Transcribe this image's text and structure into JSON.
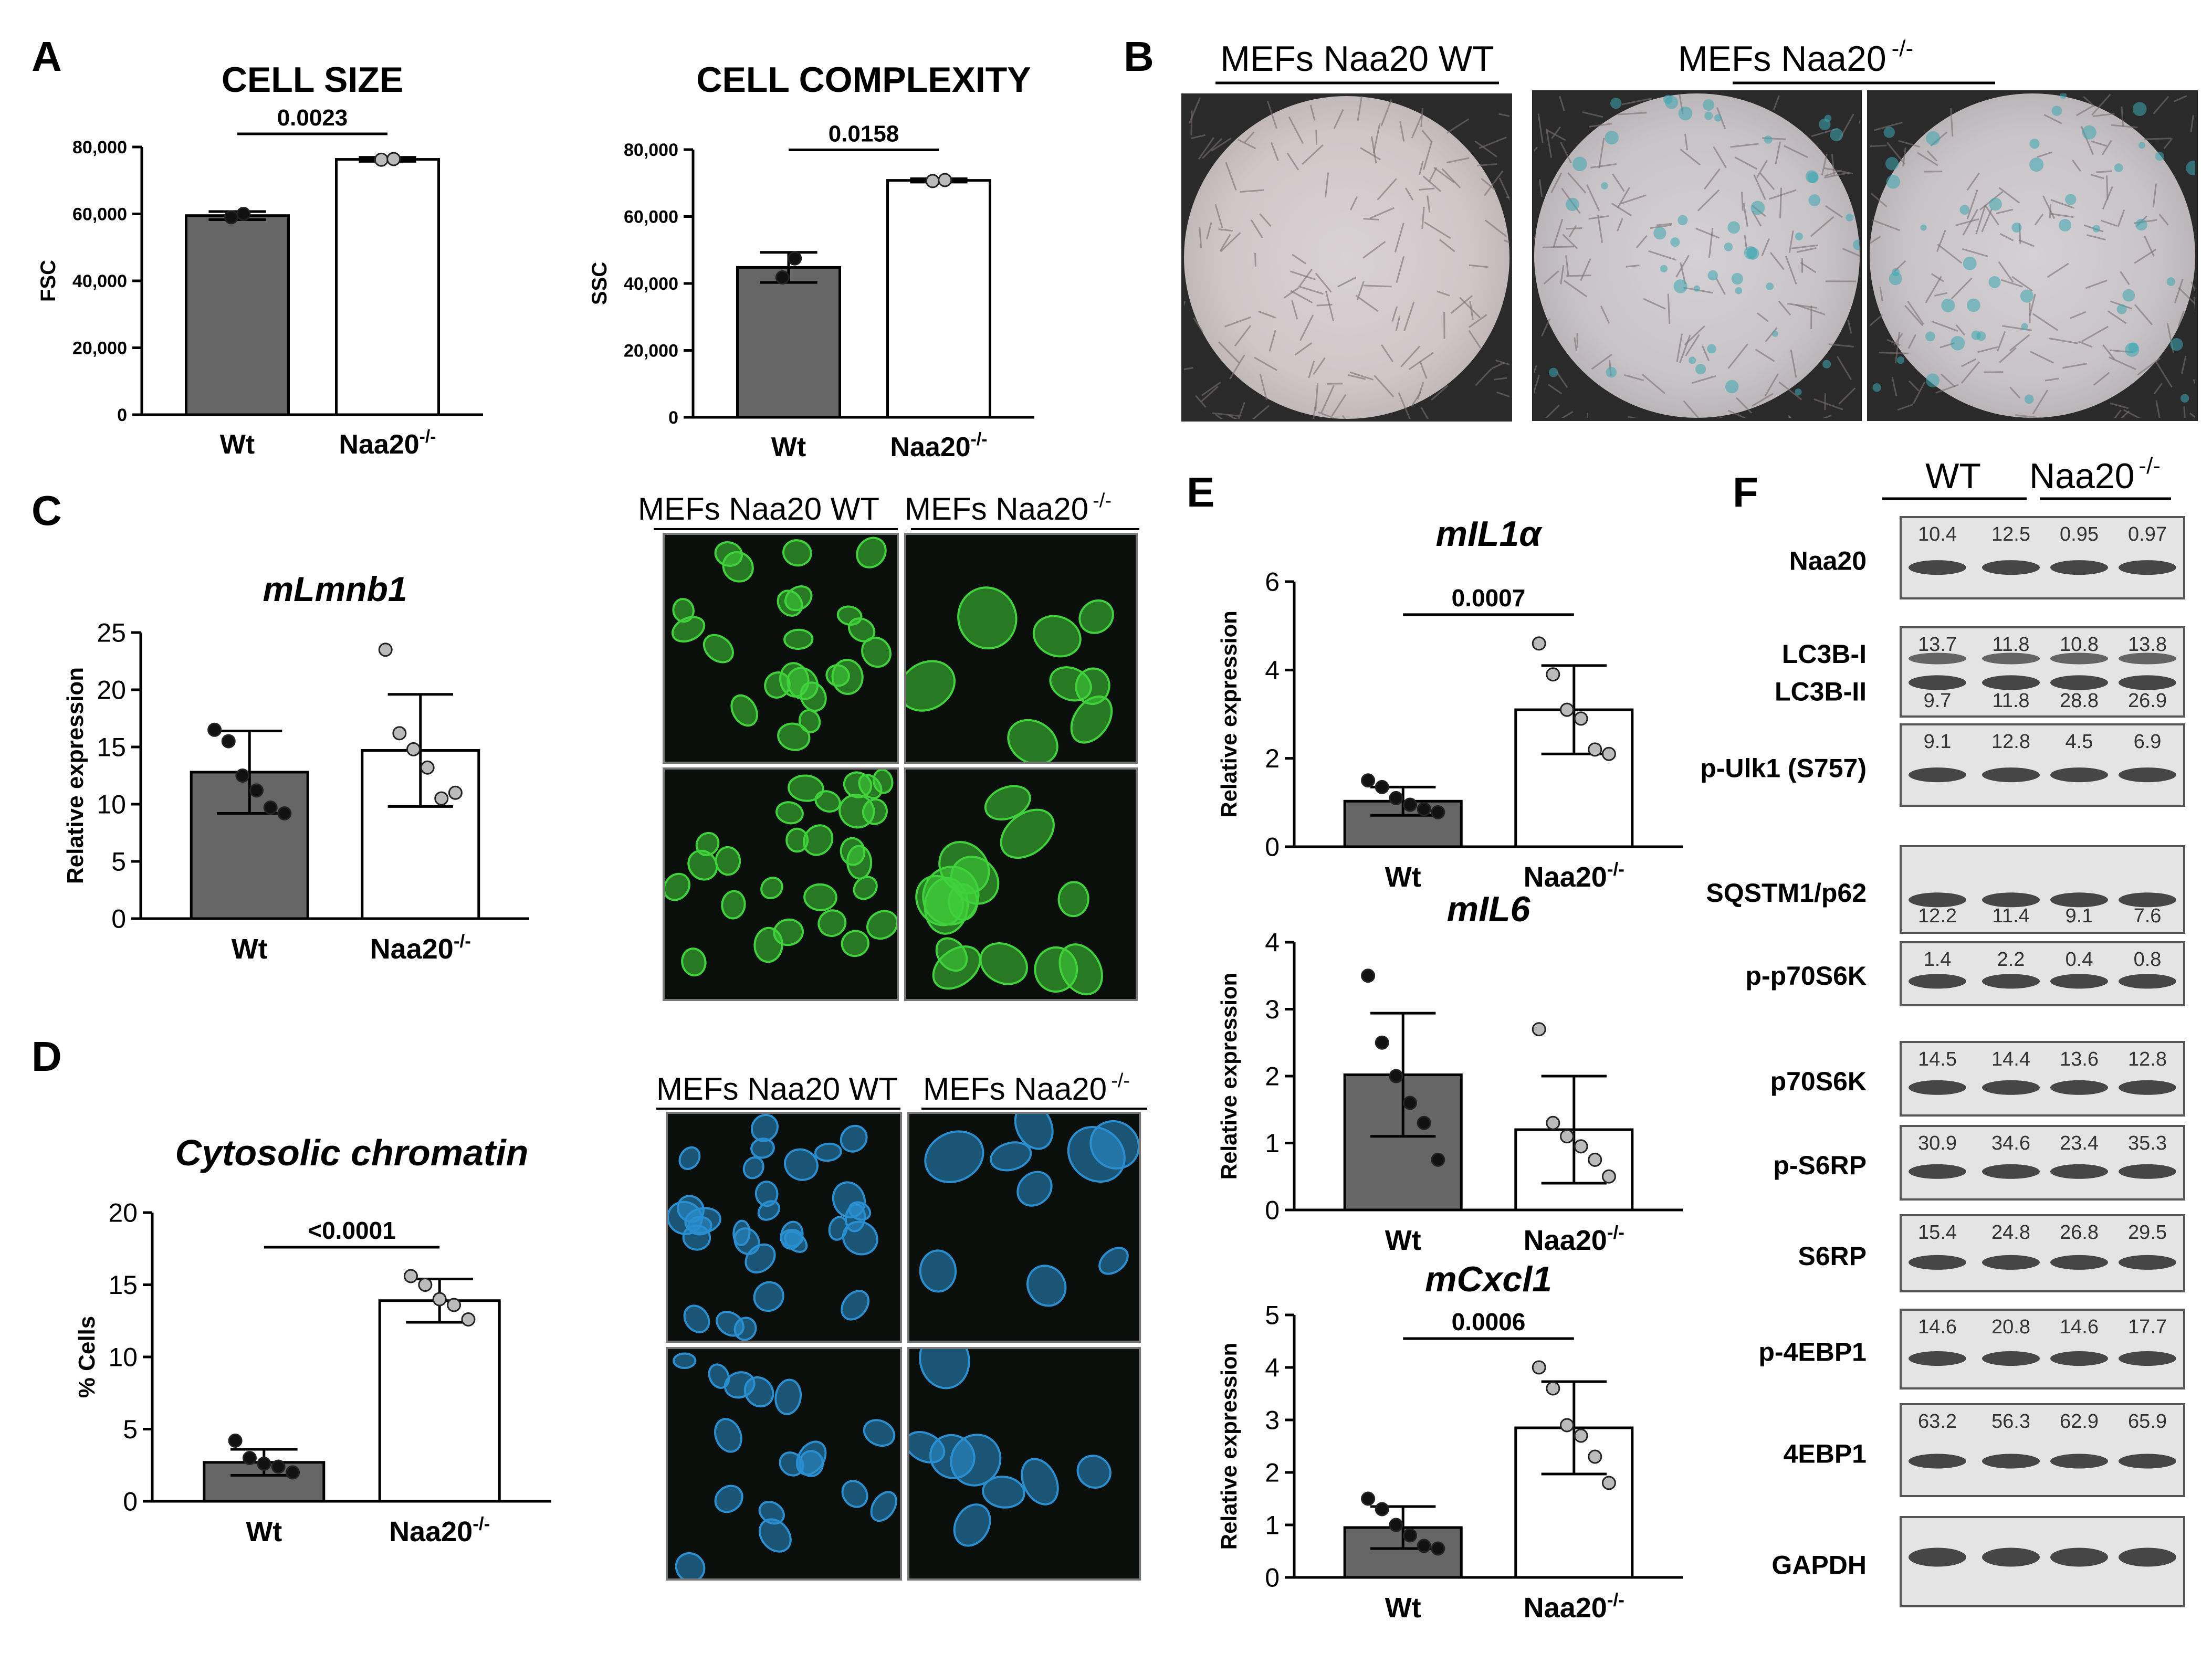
{
  "panels": {
    "A": "A",
    "B": "B",
    "C": "C",
    "D": "D",
    "E": "E",
    "F": "F"
  },
  "colors": {
    "wt_bar": "#666666",
    "ko_bar": "#ffffff",
    "gfp": "#3fd23a",
    "dapi": "#2a8fd0"
  },
  "groups": {
    "wt": "Wt",
    "ko_base": "Naa20",
    "ko_sup": "-/-"
  },
  "microscopy": {
    "b_wt_label": "MEFs Naa20 WT",
    "b_ko_label_base": "MEFs Naa20",
    "ko_sup": "-/-",
    "c_wt_label": "MEFs Naa20 WT",
    "c_ko_label_base": "MEFs Naa20",
    "d_wt_label": "MEFs Naa20 WT",
    "d_ko_label_base": "MEFs Naa20"
  },
  "chart_data": [
    {
      "id": "cell_size",
      "type": "bar",
      "title": "CELL SIZE",
      "ylabel": "FSC",
      "categories": [
        "Wt",
        "Naa20-/-"
      ],
      "values": [
        59500,
        76300
      ],
      "errors": [
        1200,
        600
      ],
      "points": [
        [
          59000,
          60000
        ],
        [
          76200,
          76400
        ]
      ],
      "ylim": [
        0,
        80000
      ],
      "yticks": [
        "0",
        "20,000",
        "40,000",
        "60,000",
        "80,000"
      ],
      "pvalue": "0.0023"
    },
    {
      "id": "cell_complexity",
      "type": "bar",
      "title": "CELL COMPLEXITY",
      "ylabel": "SSC",
      "categories": [
        "Wt",
        "Naa20-/-"
      ],
      "values": [
        44800,
        70800
      ],
      "errors": [
        4500,
        500
      ],
      "points": [
        [
          41800,
          47500
        ],
        [
          70600,
          70900
        ]
      ],
      "ylim": [
        0,
        80000
      ],
      "yticks": [
        "0",
        "20,000",
        "40,000",
        "60,000",
        "80,000"
      ],
      "pvalue": "0.0158"
    },
    {
      "id": "mlmnb1",
      "type": "bar",
      "title": "mLmnb1",
      "ylabel": "Relative expression",
      "categories": [
        "Wt",
        "Naa20-/-"
      ],
      "values": [
        12.8,
        14.7
      ],
      "errors": [
        3.6,
        4.9
      ],
      "points": [
        [
          16.5,
          15.5,
          12.5,
          11.2,
          9.7,
          9.2
        ],
        [
          23.5,
          16.2,
          14.8,
          13.2,
          10.5,
          11.0
        ]
      ],
      "ylim": [
        0,
        25
      ],
      "yticks": [
        "0",
        "5",
        "10",
        "15",
        "20",
        "25"
      ],
      "pvalue": ""
    },
    {
      "id": "cytosolic_chromatin",
      "type": "bar",
      "title": "Cytosolic chromatin",
      "ylabel": "% Cells",
      "categories": [
        "Wt",
        "Naa20-/-"
      ],
      "values": [
        2.7,
        13.9
      ],
      "errors": [
        0.9,
        1.5
      ],
      "points": [
        [
          4.2,
          3.0,
          2.6,
          2.4,
          2.0
        ],
        [
          15.6,
          15.0,
          14.0,
          13.6,
          12.6
        ]
      ],
      "ylim": [
        0,
        20
      ],
      "yticks": [
        "0",
        "5",
        "10",
        "15",
        "20"
      ],
      "pvalue": "<0.0001"
    },
    {
      "id": "mil1a",
      "type": "bar",
      "title": "mIL1α",
      "ylabel": "Relative expression",
      "categories": [
        "Wt",
        "Naa20-/-"
      ],
      "values": [
        1.03,
        3.1
      ],
      "errors": [
        0.32,
        1.0
      ],
      "points": [
        [
          1.5,
          1.35,
          1.1,
          0.95,
          0.85,
          0.78
        ],
        [
          4.6,
          3.9,
          3.1,
          2.9,
          2.2,
          2.1
        ]
      ],
      "ylim": [
        0,
        6
      ],
      "yticks": [
        "0",
        "2",
        "4",
        "6"
      ],
      "pvalue": "0.0007"
    },
    {
      "id": "mil6",
      "type": "bar",
      "title": "mIL6",
      "ylabel": "Relative expression",
      "categories": [
        "Wt",
        "Naa20-/-"
      ],
      "values": [
        2.02,
        1.2
      ],
      "errors": [
        0.92,
        0.8
      ],
      "points": [
        [
          3.5,
          2.5,
          2.0,
          1.6,
          1.3,
          0.75
        ],
        [
          2.7,
          1.3,
          1.1,
          0.95,
          0.75,
          0.5
        ]
      ],
      "ylim": [
        0,
        4
      ],
      "yticks": [
        "0",
        "1",
        "2",
        "3",
        "4"
      ],
      "pvalue": ""
    },
    {
      "id": "mcxcl1",
      "type": "bar",
      "title": "mCxcl1",
      "ylabel": "Relative expression",
      "categories": [
        "Wt",
        "Naa20-/-"
      ],
      "values": [
        0.95,
        2.85
      ],
      "errors": [
        0.4,
        0.88
      ],
      "points": [
        [
          1.5,
          1.3,
          1.0,
          0.8,
          0.6,
          0.55
        ],
        [
          4.0,
          3.6,
          2.9,
          2.7,
          2.3,
          1.8
        ]
      ],
      "ylim": [
        0,
        5
      ],
      "yticks": [
        "0",
        "1",
        "2",
        "3",
        "4",
        "5"
      ],
      "pvalue": "0.0006"
    }
  ],
  "western": {
    "wt_label": "WT",
    "ko_label_base": "Naa20",
    "ko_sup": "-/-",
    "rows": [
      {
        "name": "Naa20",
        "values": [
          "10.4",
          "12.5",
          "0.95",
          "0.97"
        ],
        "values2": []
      },
      {
        "name": "LC3B-I",
        "name2": "LC3B-II",
        "values": [
          "13.7",
          "11.8",
          "10.8",
          "13.8"
        ],
        "values2": [
          "9.7",
          "11.8",
          "28.8",
          "26.9"
        ]
      },
      {
        "name": "p-Ulk1 (S757)",
        "values": [
          "9.1",
          "12.8",
          "4.5",
          "6.9"
        ],
        "values2": []
      },
      {
        "name": "SQSTM1/p62",
        "values": [
          "12.2",
          "11.4",
          "9.1",
          "7.6"
        ],
        "values2": []
      },
      {
        "name": "p-p70S6K",
        "values": [
          "1.4",
          "2.2",
          "0.4",
          "0.8"
        ],
        "values2": []
      },
      {
        "name": "p70S6K",
        "values": [
          "14.5",
          "14.4",
          "13.6",
          "12.8"
        ],
        "values2": []
      },
      {
        "name": "p-S6RP",
        "values": [
          "30.9",
          "34.6",
          "23.4",
          "35.3"
        ],
        "values2": []
      },
      {
        "name": "S6RP",
        "values": [
          "15.4",
          "24.8",
          "26.8",
          "29.5"
        ],
        "values2": []
      },
      {
        "name": "p-4EBP1",
        "values": [
          "14.6",
          "20.8",
          "14.6",
          "17.7"
        ],
        "values2": []
      },
      {
        "name": "4EBP1",
        "values": [
          "63.2",
          "56.3",
          "62.9",
          "65.9"
        ],
        "values2": []
      },
      {
        "name": "GAPDH",
        "values": [],
        "values2": []
      }
    ]
  }
}
